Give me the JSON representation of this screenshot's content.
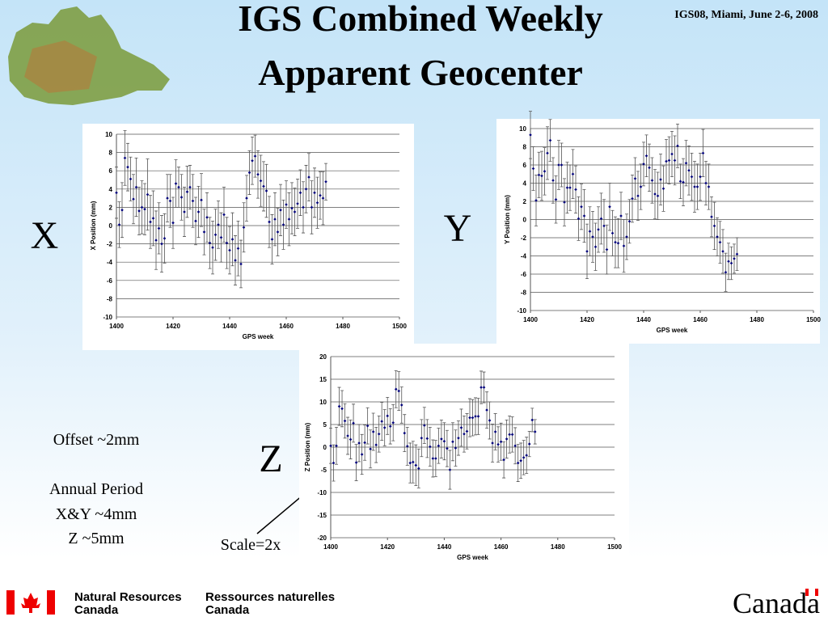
{
  "slide": {
    "title_lines": [
      "IGS Combined Weekly",
      "Apparent Geocenter"
    ],
    "header_note": "IGS08, Miami, June 2-6, 2008",
    "panel_labels": [
      "X",
      "Y",
      "Z"
    ],
    "notes": [
      "Offset ~2mm",
      "Annual Period",
      "X&Y ~4mm",
      "Z ~5mm"
    ],
    "scale_note": "Scale=2x",
    "footer": {
      "en_1": "Natural Resources",
      "en_2": "Canada",
      "fr_1": "Ressources naturelles",
      "fr_2": "Canada",
      "wordmark": "Canada"
    }
  },
  "chart_data": [
    {
      "type": "scatter",
      "xlabel": "GPS week",
      "ylabel": "X Position (mm)",
      "color": "#00007a",
      "error_color": "#555555",
      "grid": true,
      "xlim": [
        1400,
        1500
      ],
      "ylim": [
        -10,
        10
      ],
      "xticks": [
        1400,
        1420,
        1440,
        1460,
        1480,
        1500
      ],
      "yticks": [
        -10,
        -8,
        -6,
        -4,
        -2,
        0,
        2,
        4,
        6,
        8,
        10
      ],
      "x": [
        1400,
        1401,
        1402,
        1403,
        1404,
        1405,
        1406,
        1407,
        1408,
        1409,
        1410,
        1411,
        1412,
        1413,
        1414,
        1415,
        1416,
        1417,
        1418,
        1419,
        1420,
        1421,
        1422,
        1423,
        1424,
        1425,
        1426,
        1427,
        1428,
        1429,
        1430,
        1431,
        1432,
        1433,
        1434,
        1435,
        1436,
        1437,
        1438,
        1439,
        1440,
        1441,
        1442,
        1443,
        1444,
        1445,
        1446,
        1447,
        1448,
        1449,
        1450,
        1451,
        1452,
        1453,
        1454,
        1455,
        1456,
        1457,
        1458,
        1459,
        1460,
        1461,
        1462,
        1463,
        1464,
        1465,
        1466,
        1467,
        1468,
        1469,
        1470,
        1471,
        1472,
        1473,
        1474
      ],
      "values": [
        3.6,
        0.1,
        1.7,
        7.4,
        6.4,
        5.1,
        2.9,
        4.2,
        1.6,
        2.0,
        1.8,
        3.4,
        0.4,
        0.8,
        -1.6,
        -0.3,
        -2.0,
        -1.4,
        3.0,
        2.7,
        0.3,
        4.6,
        4.2,
        3.1,
        1.5,
        3.7,
        4.2,
        2.7,
        0.5,
        1.5,
        2.8,
        -0.7,
        0.9,
        -1.9,
        -2.4,
        -1.0,
        0.1,
        -1.3,
        1.2,
        -1.9,
        -2.7,
        -1.5,
        -3.8,
        -2.5,
        -4.2,
        -0.2,
        3.0,
        5.8,
        7.1,
        7.6,
        5.6,
        4.9,
        4.3,
        3.8,
        0.4,
        -1.5,
        0.7,
        -0.7,
        1.7,
        0.1,
        2.3,
        0.7,
        1.9,
        1.5,
        2.4,
        3.6,
        2.0,
        4.0,
        5.3,
        2.0,
        3.6,
        2.5,
        3.3,
        3.0,
        4.8
      ],
      "errors": [
        2.8,
        2.5,
        3.0,
        3.0,
        2.6,
        2.4,
        2.7,
        3.2,
        2.6,
        2.9,
        2.8,
        3.9,
        2.9,
        3.0,
        3.2,
        2.8,
        3.1,
        2.7,
        2.6,
        2.9,
        2.8,
        2.6,
        2.2,
        2.5,
        2.7,
        2.8,
        2.4,
        2.9,
        2.6,
        2.8,
        2.9,
        2.5,
        2.7,
        2.8,
        2.9,
        2.8,
        2.6,
        2.7,
        3.0,
        2.8,
        2.6,
        2.9,
        2.7,
        3.0,
        2.6,
        2.7,
        2.5,
        2.4,
        2.6,
        2.3,
        2.6,
        2.8,
        2.7,
        2.9,
        2.8,
        2.7,
        2.9,
        2.6,
        2.8,
        2.7,
        2.6,
        2.9,
        2.8,
        2.6,
        2.7,
        2.5,
        2.8,
        2.6,
        2.6,
        2.9,
        2.7,
        2.8,
        2.6,
        2.9,
        2.0
      ]
    },
    {
      "type": "scatter",
      "xlabel": "GPS week",
      "ylabel": "Y Position (mm)",
      "color": "#00007a",
      "error_color": "#555555",
      "grid": true,
      "xlim": [
        1400,
        1500
      ],
      "ylim": [
        -10,
        10
      ],
      "xticks": [
        1400,
        1420,
        1440,
        1460,
        1480,
        1500
      ],
      "yticks": [
        -10,
        -8,
        -6,
        -4,
        -2,
        0,
        2,
        4,
        6,
        8,
        10
      ],
      "x": [
        1400,
        1401,
        1402,
        1403,
        1404,
        1405,
        1406,
        1407,
        1408,
        1409,
        1410,
        1411,
        1412,
        1413,
        1414,
        1415,
        1416,
        1417,
        1418,
        1419,
        1420,
        1421,
        1422,
        1423,
        1424,
        1425,
        1426,
        1427,
        1428,
        1429,
        1430,
        1431,
        1432,
        1433,
        1434,
        1435,
        1436,
        1437,
        1438,
        1439,
        1440,
        1441,
        1442,
        1443,
        1444,
        1445,
        1446,
        1447,
        1448,
        1449,
        1450,
        1451,
        1452,
        1453,
        1454,
        1455,
        1456,
        1457,
        1458,
        1459,
        1460,
        1461,
        1462,
        1463,
        1464,
        1465,
        1466,
        1467,
        1468,
        1469,
        1470,
        1471,
        1472,
        1473
      ],
      "values": [
        9.3,
        5.6,
        2.1,
        4.9,
        4.8,
        5.3,
        7.3,
        8.7,
        4.3,
        2.2,
        6.0,
        6.0,
        1.9,
        3.5,
        3.5,
        5.0,
        3.3,
        0.1,
        1.4,
        0.4,
        -3.5,
        -1.3,
        -1.9,
        -3.0,
        -1.1,
        0.1,
        -0.7,
        -3.3,
        1.4,
        -1.5,
        -2.5,
        -2.6,
        0.4,
        -2.9,
        -1.9,
        -0.2,
        2.3,
        4.5,
        2.6,
        3.6,
        6.1,
        7.0,
        5.7,
        4.3,
        2.8,
        2.6,
        4.4,
        3.4,
        6.4,
        6.5,
        7.2,
        6.5,
        8.1,
        4.2,
        4.1,
        6.2,
        5.4,
        4.7,
        3.6,
        3.6,
        4.7,
        7.3,
        4.0,
        3.6,
        0.3,
        -0.7,
        -1.9,
        -2.5,
        -3.5,
        -5.8,
        -4.6,
        -4.8,
        -4.3,
        -3.8
      ],
      "errors": [
        2.6,
        2.4,
        2.8,
        2.5,
        2.7,
        2.6,
        2.9,
        2.3,
        2.5,
        2.6,
        2.7,
        2.4,
        2.6,
        2.8,
        2.5,
        2.7,
        2.6,
        2.4,
        2.5,
        2.9,
        3.0,
        2.7,
        2.8,
        2.6,
        2.5,
        2.8,
        2.9,
        2.7,
        2.6,
        2.5,
        2.8,
        2.7,
        2.6,
        2.9,
        2.5,
        2.4,
        2.6,
        2.3,
        2.7,
        2.5,
        2.4,
        2.3,
        2.6,
        2.5,
        2.7,
        2.6,
        2.8,
        2.5,
        2.4,
        2.6,
        2.5,
        2.7,
        2.4,
        1.9,
        2.6,
        2.5,
        2.7,
        2.6,
        2.8,
        2.5,
        2.6,
        2.6,
        2.4,
        2.5,
        2.2,
        2.6,
        2.1,
        2.3,
        2.4,
        2.1,
        2.0,
        1.8,
        1.6,
        1.8
      ]
    },
    {
      "type": "scatter",
      "xlabel": "GPS week",
      "ylabel": "Z Position (mm)",
      "color": "#00007a",
      "error_color": "#555555",
      "grid": true,
      "xlim": [
        1400,
        1500
      ],
      "ylim": [
        -20,
        20
      ],
      "xticks": [
        1400,
        1420,
        1440,
        1460,
        1480,
        1500
      ],
      "yticks": [
        -20,
        -15,
        -10,
        -5,
        0,
        5,
        10,
        15,
        20
      ],
      "x": [
        1400,
        1401,
        1402,
        1403,
        1404,
        1405,
        1406,
        1407,
        1408,
        1409,
        1410,
        1411,
        1412,
        1413,
        1414,
        1415,
        1416,
        1417,
        1418,
        1419,
        1420,
        1421,
        1422,
        1423,
        1424,
        1425,
        1426,
        1427,
        1428,
        1429,
        1430,
        1431,
        1432,
        1433,
        1434,
        1435,
        1436,
        1437,
        1438,
        1439,
        1440,
        1441,
        1442,
        1443,
        1444,
        1445,
        1446,
        1447,
        1448,
        1449,
        1450,
        1451,
        1452,
        1453,
        1454,
        1455,
        1456,
        1457,
        1458,
        1459,
        1460,
        1461,
        1462,
        1463,
        1464,
        1465,
        1466,
        1467,
        1468,
        1469,
        1470,
        1471,
        1472
      ],
      "values": [
        0.3,
        -3.5,
        0.3,
        9.0,
        8.5,
        5.8,
        2.5,
        1.7,
        5.3,
        -3.4,
        0.9,
        -1.6,
        1.0,
        4.7,
        -0.4,
        3.4,
        0.5,
        2.9,
        5.7,
        4.3,
        6.9,
        4.6,
        5.4,
        12.8,
        12.4,
        9.3,
        3.1,
        0.2,
        -3.5,
        -3.3,
        -4.0,
        -4.7,
        2.0,
        4.8,
        1.9,
        0.1,
        -2.5,
        -2.5,
        0.3,
        1.8,
        1.3,
        -0.3,
        -5.0,
        1.2,
        -0.2,
        2.0,
        4.3,
        2.9,
        3.5,
        6.5,
        6.5,
        6.8,
        6.8,
        13.2,
        13.2,
        8.2,
        5.9,
        0.9,
        3.4,
        0.6,
        1.2,
        -2.8,
        1.8,
        2.8,
        2.8,
        0.3,
        -3.5,
        -3.0,
        -2.3,
        -1.8,
        0.7,
        6.0,
        3.4
      ],
      "errors": [
        3.9,
        4.0,
        4.1,
        4.2,
        4.0,
        3.8,
        4.1,
        4.3,
        4.2,
        4.0,
        4.1,
        4.4,
        3.9,
        4.0,
        4.2,
        4.1,
        3.9,
        4.0,
        4.2,
        4.0,
        4.1,
        3.9,
        4.0,
        4.1,
        4.3,
        4.0,
        4.1,
        4.2,
        4.4,
        4.6,
        4.5,
        4.3,
        4.1,
        4.0,
        4.2,
        4.3,
        4.1,
        4.0,
        3.9,
        4.2,
        4.1,
        4.0,
        4.3,
        4.2,
        4.0,
        3.8,
        4.1,
        4.0,
        3.9,
        4.2,
        4.0,
        4.1,
        4.0,
        3.6,
        3.4,
        4.0,
        4.1,
        4.2,
        4.0,
        3.9,
        4.1,
        4.0,
        4.2,
        4.1,
        3.9,
        4.0,
        4.1,
        3.9,
        3.8,
        4.0,
        2.8,
        2.6,
        2.7
      ]
    }
  ]
}
